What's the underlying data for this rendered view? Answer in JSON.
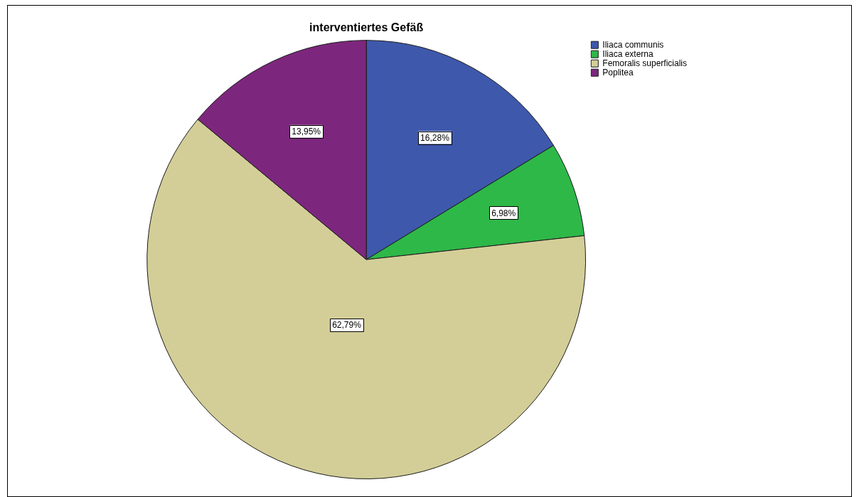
{
  "chart_data": {
    "type": "pie",
    "title": "interventiertes Gefäß",
    "categories": [
      "Iliaca communis",
      "Iliaca externa",
      "Femoralis superficialis",
      "Poplitea"
    ],
    "values": [
      16.28,
      6.98,
      62.79,
      13.95
    ],
    "colors": [
      "#3e58ac",
      "#2eb848",
      "#d3ce97",
      "#7c277d"
    ],
    "value_labels": [
      "16,28%",
      "6,98%",
      "62,79%",
      "13,95%"
    ],
    "legend": "top right"
  }
}
